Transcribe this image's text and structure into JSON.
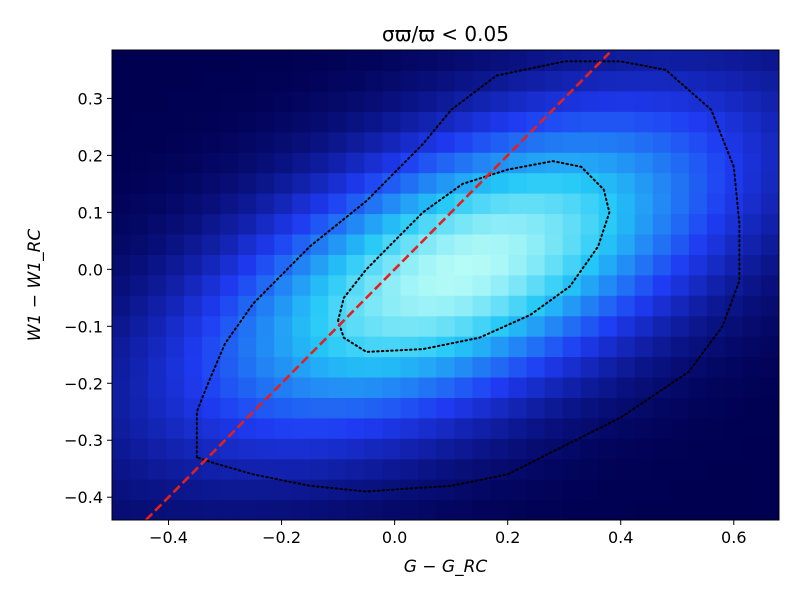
{
  "chart_data": {
    "type": "heatmap",
    "title": "σϖ/ϖ < 0.05",
    "xlabel": "G − G_RC",
    "ylabel": "W1 − W1_RC",
    "xlim": [
      -0.5,
      0.68
    ],
    "ylim": [
      -0.44,
      0.385
    ],
    "x_ticks": [
      -0.4,
      -0.2,
      0.0,
      0.2,
      0.4,
      0.6
    ],
    "x_tick_labels": [
      "−0.4",
      "−0.2",
      "0.0",
      "0.2",
      "0.4",
      "0.6"
    ],
    "y_ticks": [
      -0.4,
      -0.3,
      -0.2,
      -0.1,
      0.0,
      0.1,
      0.2,
      0.3
    ],
    "y_tick_labels": [
      "−0.4",
      "−0.3",
      "−0.2",
      "−0.1",
      "0.0",
      "0.1",
      "0.2",
      "0.3"
    ],
    "grid": false,
    "colormap": {
      "low": "#000050",
      "mid1": "#1f3bf2",
      "mid2": "#24c8f7",
      "high": "#b6fbf7"
    },
    "density": {
      "center": [
        0.12,
        0.0
      ],
      "sigma_major": 0.26,
      "sigma_minor": 0.11,
      "angle_deg": 24
    },
    "reference_line": {
      "style": "dashed",
      "color": "#e3211c",
      "points": [
        [
          -0.44,
          -0.44
        ],
        [
          0.38,
          0.38
        ]
      ]
    },
    "contours": [
      {
        "level": "inner",
        "style": "dotted",
        "color": "#000000",
        "points": [
          [
            -0.1,
            -0.09
          ],
          [
            -0.09,
            -0.05
          ],
          [
            -0.05,
            0.0
          ],
          [
            0.0,
            0.05
          ],
          [
            0.05,
            0.1
          ],
          [
            0.12,
            0.15
          ],
          [
            0.2,
            0.175
          ],
          [
            0.28,
            0.19
          ],
          [
            0.33,
            0.18
          ],
          [
            0.37,
            0.14
          ],
          [
            0.38,
            0.1
          ],
          [
            0.36,
            0.04
          ],
          [
            0.31,
            -0.03
          ],
          [
            0.24,
            -0.08
          ],
          [
            0.15,
            -0.12
          ],
          [
            0.05,
            -0.14
          ],
          [
            -0.05,
            -0.145
          ],
          [
            -0.09,
            -0.12
          ],
          [
            -0.1,
            -0.09
          ]
        ]
      },
      {
        "level": "outer",
        "style": "dotted",
        "color": "#000000",
        "points": [
          [
            -0.35,
            -0.33
          ],
          [
            -0.35,
            -0.25
          ],
          [
            -0.33,
            -0.2
          ],
          [
            -0.3,
            -0.13
          ],
          [
            -0.25,
            -0.06
          ],
          [
            -0.15,
            0.04
          ],
          [
            -0.05,
            0.12
          ],
          [
            0.05,
            0.22
          ],
          [
            0.1,
            0.28
          ],
          [
            0.18,
            0.34
          ],
          [
            0.3,
            0.365
          ],
          [
            0.4,
            0.365
          ],
          [
            0.48,
            0.35
          ],
          [
            0.56,
            0.28
          ],
          [
            0.6,
            0.18
          ],
          [
            0.61,
            0.08
          ],
          [
            0.61,
            -0.02
          ],
          [
            0.58,
            -0.1
          ],
          [
            0.52,
            -0.18
          ],
          [
            0.4,
            -0.26
          ],
          [
            0.3,
            -0.31
          ],
          [
            0.2,
            -0.36
          ],
          [
            0.1,
            -0.38
          ],
          [
            0.02,
            -0.385
          ],
          [
            -0.05,
            -0.39
          ],
          [
            -0.15,
            -0.38
          ],
          [
            -0.25,
            -0.36
          ],
          [
            -0.32,
            -0.34
          ],
          [
            -0.35,
            -0.33
          ]
        ]
      }
    ]
  }
}
